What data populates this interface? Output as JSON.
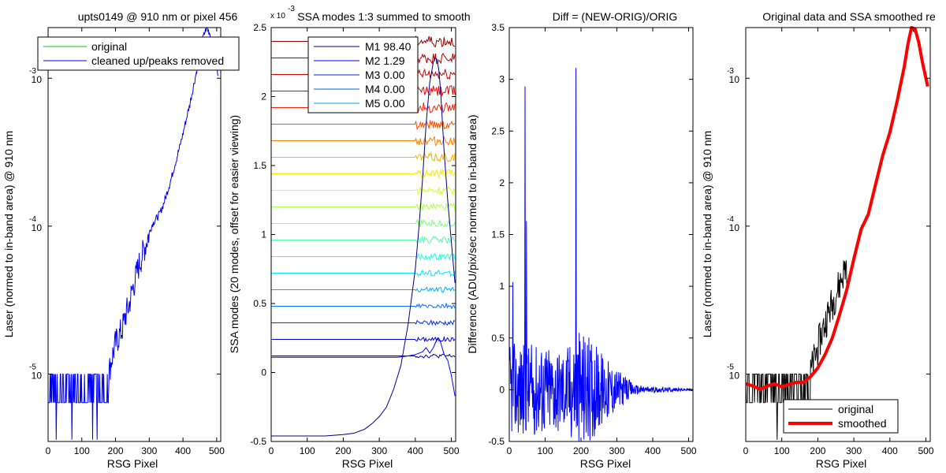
{
  "chart_data": [
    {
      "type": "line",
      "title": "upts0149 @ 910 nm or pixel 456",
      "xlabel": "RSG Pixel",
      "ylabel": "Laser (normed to in-band area) @ 910 nm",
      "xlim": [
        0,
        512
      ],
      "ylim": [
        3.5e-06,
        0.0022
      ],
      "yscale": "log",
      "xticks": [
        0,
        100,
        200,
        300,
        400,
        500
      ],
      "ytick_values": [
        1e-05,
        0.0001,
        0.001
      ],
      "ytick_mantissas": [
        "10",
        "10",
        "10"
      ],
      "ytick_exponents": [
        "-5",
        "-4",
        "-3"
      ],
      "legend": [
        "original",
        "cleaned up/peaks removed"
      ],
      "legend_position": "top",
      "series": [
        {
          "name": "cleaned up/peaks removed",
          "color": "#0000ff",
          "x": [
            0,
            20,
            40,
            60,
            80,
            100,
            120,
            140,
            160,
            170,
            180,
            190,
            200,
            210,
            220,
            230,
            240,
            250,
            260,
            270,
            280,
            290,
            300,
            310,
            320,
            330,
            340,
            350,
            360,
            370,
            380,
            390,
            400,
            410,
            420,
            430,
            440,
            450,
            460,
            470,
            480,
            490,
            500,
            505
          ],
          "y": [
            1e-05,
            6.4e-06,
            1e-05,
            6.4e-06,
            1e-05,
            6.4e-06,
            1e-05,
            6.4e-06,
            1e-05,
            6e-06,
            1e-05,
            1.3e-05,
            1.6e-05,
            1.8e-05,
            2e-05,
            2.5e-05,
            2.9e-05,
            3.7e-05,
            4.5e-05,
            5.5e-05,
            6.4e-05,
            7.6e-05,
            9e-05,
            0.000104,
            0.000112,
            0.00012,
            0.000136,
            0.00016,
            0.00019,
            0.00023,
            0.00028,
            0.00034,
            0.00042,
            0.00053,
            0.00066,
            0.00085,
            0.0011,
            0.00145,
            0.0019,
            0.0022,
            0.002,
            0.0015,
            0.0012,
            0.00105
          ]
        }
      ]
    },
    {
      "type": "line",
      "title": "SSA modes 1:3 summed to smooth",
      "xlabel": "RSG Pixel",
      "ylabel": "SSA modes (20 modes, offset for easier viewing)",
      "y_multiplier_base": "x 10",
      "y_multiplier_exp": "-3",
      "xlim": [
        0,
        512
      ],
      "ylim": [
        -0.5,
        2.5
      ],
      "xticks": [
        0,
        100,
        200,
        300,
        400,
        500
      ],
      "yticks": [
        -0.5,
        0,
        0.5,
        1,
        1.5,
        2,
        2.5
      ],
      "ytick_labels": [
        "-0.5",
        "0",
        "0.5",
        "1",
        "1.5",
        "2",
        "2.5"
      ],
      "legend": [
        "M1 98.40",
        "M2 1.29",
        "M3 0.00",
        "M4 0.00",
        "M5 0.00"
      ],
      "legend_position": "top-center",
      "legend_colors": [
        "#00008f",
        "#0000ff",
        "#0020ff",
        "#0060ff",
        "#00a0ff"
      ],
      "mode_offsets": [
        0.12,
        0.24,
        0.36,
        0.48,
        0.6,
        0.72,
        0.84,
        0.96,
        1.08,
        1.2,
        1.32,
        1.44,
        1.56,
        1.68,
        1.8,
        1.92,
        2.04,
        2.16,
        2.28,
        2.4
      ],
      "mode_colors": [
        "#00008f",
        "#0000df",
        "#0030ff",
        "#0070ff",
        "#00b0ff",
        "#00e8ff",
        "#20ffe0",
        "#50ffb0",
        "#80ff80",
        "#b0ff50",
        "#e0ff20",
        "#ffe800",
        "#ffb000",
        "#ff8000",
        "#ff5000",
        "#ff2000",
        "#ef0000",
        "#cf0000",
        "#af0000",
        "#8f0000"
      ],
      "series": [
        {
          "name": "M1",
          "color": "#00008f",
          "x": [
            0,
            50,
            100,
            150,
            200,
            230,
            260,
            280,
            300,
            320,
            340,
            360,
            380,
            400,
            410,
            420,
            430,
            440,
            450,
            455,
            460,
            465,
            470,
            480,
            490,
            500,
            505,
            510
          ],
          "y": [
            -0.46,
            -0.46,
            -0.46,
            -0.46,
            -0.45,
            -0.44,
            -0.41,
            -0.37,
            -0.32,
            -0.25,
            -0.12,
            0.05,
            0.35,
            0.75,
            1.05,
            1.4,
            1.8,
            2.1,
            2.25,
            2.28,
            2.27,
            2.2,
            2.05,
            1.6,
            1.25,
            0.95,
            0.8,
            0.65
          ]
        },
        {
          "name": "M2",
          "color": "#0000ff",
          "x": [
            0,
            50,
            100,
            150,
            200,
            250,
            300,
            350,
            380,
            400,
            420,
            430,
            440,
            450,
            460,
            465,
            470,
            480,
            490,
            500,
            510
          ],
          "y": [
            0.11,
            0.11,
            0.11,
            0.11,
            0.11,
            0.11,
            0.11,
            0.11,
            0.12,
            0.13,
            0.15,
            0.18,
            0.14,
            0.18,
            0.24,
            0.25,
            0.22,
            0.13,
            0.09,
            -0.02,
            -0.17
          ]
        }
      ]
    },
    {
      "type": "line",
      "title": "Diff = (NEW-ORIG)/ORIG",
      "xlabel": "RSG Pixel",
      "ylabel": "Difference (ADU/pix/sec normed to in-band area)",
      "xlim": [
        0,
        512
      ],
      "ylim": [
        -0.5,
        3.5
      ],
      "xticks": [
        0,
        100,
        200,
        300,
        400,
        500
      ],
      "yticks": [
        -0.5,
        0,
        0.5,
        1,
        1.5,
        2,
        2.5,
        3,
        3.5
      ],
      "ytick_labels": [
        "-0.5",
        "0",
        "0.5",
        "1",
        "1.5",
        "2",
        "2.5",
        "3",
        "3.5"
      ],
      "series": [
        {
          "name": "",
          "color": "#0000ff",
          "spikes_x": [
            10,
            44,
            48,
            186
          ],
          "spikes_y": [
            1.04,
            2.93,
            1.63,
            3.11
          ],
          "noise_envelope_x": [
            0,
            100,
            150,
            200,
            250,
            300,
            350,
            400,
            450,
            512
          ],
          "noise_envelope_y": [
            0.45,
            0.45,
            0.4,
            0.6,
            0.4,
            0.2,
            0.05,
            0.03,
            0.02,
            0.01
          ]
        }
      ]
    },
    {
      "type": "line",
      "title": "Original data and SSA smoothed re",
      "xlabel": "RSG Pixel",
      "ylabel": "Laser (normed to in-band area) @ 910 nm",
      "xlim": [
        0,
        512
      ],
      "ylim": [
        3.5e-06,
        0.0022
      ],
      "yscale": "log",
      "xticks": [
        0,
        100,
        200,
        300,
        400,
        500
      ],
      "ytick_values": [
        1e-05,
        0.0001,
        0.001
      ],
      "ytick_mantissas": [
        "10",
        "10",
        "10"
      ],
      "ytick_exponents": [
        "-5",
        "-4",
        "-3"
      ],
      "legend": [
        "original",
        "smoothed"
      ],
      "legend_position": "bottom-center",
      "series": [
        {
          "name": "original",
          "color": "#000000",
          "x": [
            0,
            40,
            80,
            120,
            160,
            180,
            200,
            220,
            240,
            260,
            280
          ],
          "y": [
            1e-05,
            6.4e-06,
            1e-05,
            6.4e-06,
            1e-05,
            1e-05,
            1.5e-05,
            2.2e-05,
            3e-05,
            4e-05,
            5.5e-05
          ]
        },
        {
          "name": "smoothed",
          "color": "#ff0000",
          "x": [
            0,
            20,
            40,
            60,
            80,
            100,
            120,
            140,
            160,
            180,
            200,
            220,
            240,
            260,
            280,
            300,
            320,
            340,
            360,
            380,
            400,
            420,
            440,
            450,
            460,
            470,
            480,
            490,
            500,
            505
          ],
          "y": [
            8.6e-06,
            8.3e-06,
            7.9e-06,
            8.3e-06,
            8.6e-06,
            8.2e-06,
            8.5e-06,
            8.8e-06,
            8.8e-06,
            9.6e-06,
            1.1e-05,
            1.35e-05,
            1.75e-05,
            2.5e-05,
            3.7e-05,
            6e-05,
            9.5e-05,
            0.00012,
            0.00019,
            0.0003,
            0.00043,
            0.0007,
            0.0012,
            0.0017,
            0.0022,
            0.00215,
            0.00175,
            0.0013,
            0.001,
            0.00088
          ]
        }
      ]
    }
  ]
}
